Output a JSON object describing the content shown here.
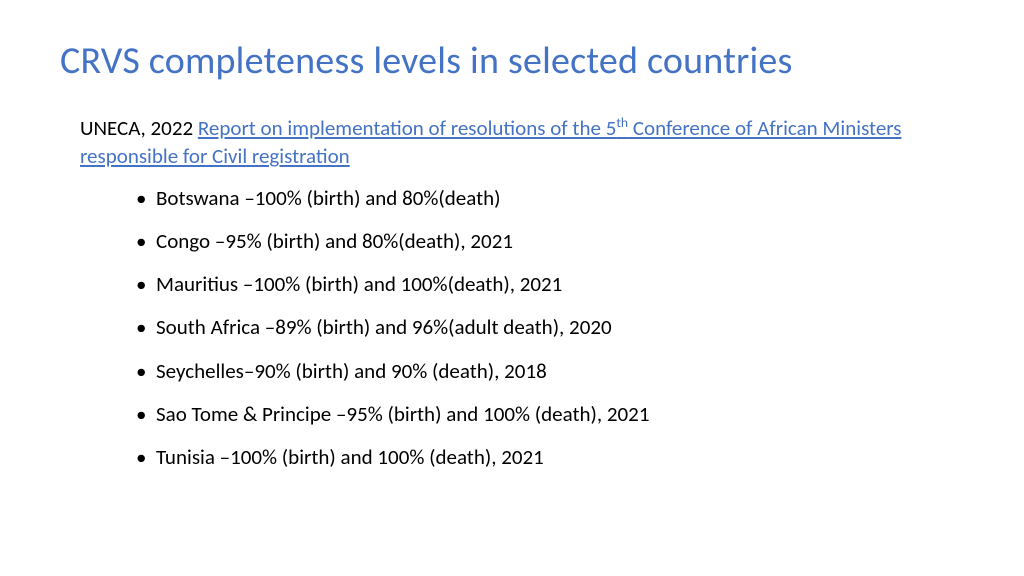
{
  "title": "CRVS completeness levels in selected countries",
  "source": {
    "prefix": "UNECA, 2022 ",
    "link_pre": "Report on implementation of resolutions of the 5",
    "link_sup": "th",
    "link_post": " Conference of African Ministers responsible for Civil registration"
  },
  "items": [
    "Botswana –100% (birth) and 80%(death)",
    "Congo –95% (birth) and 80%(death), 2021",
    "Mauritius –100% (birth) and 100%(death), 2021",
    "South Africa –89% (birth) and 96%(adult death), 2020",
    "Seychelles–90% (birth) and 90% (death), 2018",
    "Sao Tome & Principe –95% (birth) and 100% (death), 2021",
    "Tunisia  –100% (birth) and 100% (death), 2021"
  ],
  "colors": {
    "title": "#4472c4",
    "link": "#4472c4",
    "body": "#000000",
    "background": "#ffffff"
  },
  "typography": {
    "title_fontsize": 38,
    "body_fontsize": 21,
    "font_family": "Calibri"
  }
}
